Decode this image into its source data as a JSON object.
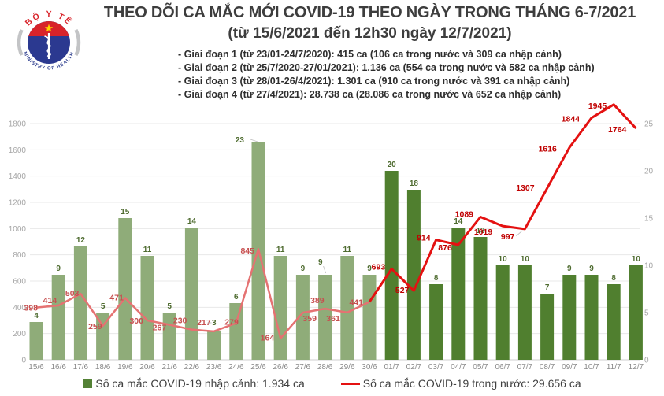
{
  "header": {
    "title": "THEO DÕI CA MẮC MỚI COVID-19 THEO NGÀY TRONG THÁNG 6-7/2021",
    "subtitle": "(từ 15/6/2021 đến 12h30 ngày 12/7/2021)",
    "bullets": [
      "- Giai đoạn 1 (từ 23/01-24/7/2020): 415 ca (106 ca trong nước và 309 ca nhập cảnh)",
      "- Giai đoạn 2 (từ 25/7/2020-27/01/2021): 1.136 ca (554 ca trong nước và 582 ca nhập cảnh)",
      "- Giai đoạn 3 (từ 28/01-26/4/2021): 1.301 ca (910 ca trong nước và 391 ca nhập cảnh)",
      "- Giai đoạn 4 (từ 27/4/2021): 28.738 ca (28.086 ca trong nước và 652 ca nhập cảnh)"
    ],
    "logo": {
      "top_text": "BỘ Y TẾ",
      "bottom_text": "MINISTRY OF HEALTH"
    }
  },
  "chart_data": {
    "type": "bar+line combo",
    "categories": [
      "15/6",
      "16/6",
      "17/6",
      "18/6",
      "19/6",
      "20/6",
      "21/6",
      "22/6",
      "23/6",
      "24/6",
      "25/6",
      "26/6",
      "27/6",
      "28/6",
      "29/6",
      "30/6",
      "01/7",
      "02/7",
      "03/7",
      "04/7",
      "05/7",
      "06/7",
      "07/7",
      "08/7",
      "09/7",
      "10/7",
      "11/7",
      "12/7"
    ],
    "series": [
      {
        "name": "Số ca mắc COVID-19 nhập cảnh",
        "type": "bar",
        "axis": "right",
        "values": [
          4,
          9,
          12,
          5,
          15,
          11,
          5,
          14,
          3,
          6,
          23,
          11,
          9,
          9,
          11,
          9,
          20,
          18,
          8,
          14,
          13,
          10,
          10,
          7,
          9,
          9,
          8,
          10
        ]
      },
      {
        "name": "Số ca mắc COVID-19 trong nước",
        "type": "line",
        "axis": "left",
        "values": [
          398,
          414,
          503,
          259,
          471,
          300,
          267,
          230,
          217,
          279,
          845,
          164,
          359,
          389,
          361,
          441,
          693,
          527,
          914,
          876,
          1089,
          1019,
          997,
          1307,
          1616,
          1844,
          1945,
          1764
        ]
      }
    ],
    "left_axis": {
      "min": 0,
      "max": 1800,
      "step": 200,
      "ticks": [
        0,
        200,
        400,
        600,
        800,
        1000,
        1200,
        1400,
        1600,
        1800
      ]
    },
    "right_axis": {
      "min": 0,
      "max": 25,
      "step": 5,
      "ticks": [
        0,
        5,
        10,
        15,
        20,
        25
      ]
    },
    "grid": true,
    "legend_position": "bottom",
    "highlight_from_index": 16,
    "colors": {
      "june_bar": "#8fac79",
      "july_bar": "#507f2f",
      "june_line": "#e57272",
      "july_line": "#e41111",
      "bar_label": "#4e6b2f",
      "june_line_label": "#c75050",
      "july_line_label": "#c00000",
      "axis_label": "#a6a6a6",
      "x_label": "#8a8a8a",
      "grid": "#e8e8e8",
      "baseline": "#cfcfcf",
      "legend_bar": "#538135",
      "legend_line": "#e41111",
      "leader": "#bfbfbf"
    },
    "label_layout": {
      "line_placement": [
        [
          "end",
          2,
          4
        ],
        [
          "end",
          -2,
          -3
        ],
        [
          "end",
          -2,
          3
        ],
        [
          "end",
          -1,
          4
        ],
        [
          "end",
          -2,
          3
        ],
        [
          "end",
          -5,
          4
        ],
        [
          "end",
          -4,
          7
        ],
        [
          "end",
          -6,
          -8
        ],
        [
          "end",
          -4,
          -8
        ],
        [
          "end",
          3,
          2
        ],
        [
          "end",
          -5,
          6
        ],
        [
          "end",
          -8,
          3
        ],
        [
          "start",
          0,
          11
        ],
        [
          "end",
          -1,
          -7
        ],
        [
          "end",
          -9,
          11
        ],
        [
          "end",
          -8,
          4
        ],
        [
          "end",
          -8,
          1
        ],
        [
          "end",
          -6,
          3
        ],
        [
          "end",
          -7,
          1
        ],
        [
          "end",
          -8,
          7
        ],
        [
          "end",
          -9,
          0
        ],
        [
          "end",
          -13,
          11
        ],
        [
          "end",
          -13,
          13
        ],
        [
          "end",
          -16,
          3
        ],
        [
          "end",
          -16,
          5
        ],
        [
          "end",
          -15,
          5
        ],
        [
          "end",
          -9,
          5
        ],
        [
          "end",
          -12,
          5
        ]
      ],
      "bar_overrides": {
        "8": [
          3,
          -8
        ],
        "10": [
          -18,
          0
        ],
        "13": [
          -3,
          -13
        ]
      },
      "leaders": [
        {
          "series": "bar",
          "index": 8,
          "seg": [
            -8,
            -11,
            -3,
            -11
          ]
        },
        {
          "series": "bar",
          "index": 10,
          "seg": [
            -10,
            -4,
            -1,
            -1
          ]
        },
        {
          "series": "bar",
          "index": 13,
          "seg": [
            -2,
            -11,
            1,
            -2
          ]
        },
        {
          "series": "line",
          "index": 22,
          "seg": [
            -11,
            9,
            -3,
            2
          ]
        }
      ]
    }
  },
  "legend": {
    "bar_label": "Số ca mắc COVID-19 nhập cảnh: 1.934 ca",
    "line_label": "Số ca mắc COVID-19 trong nước: 29.656 ca"
  }
}
